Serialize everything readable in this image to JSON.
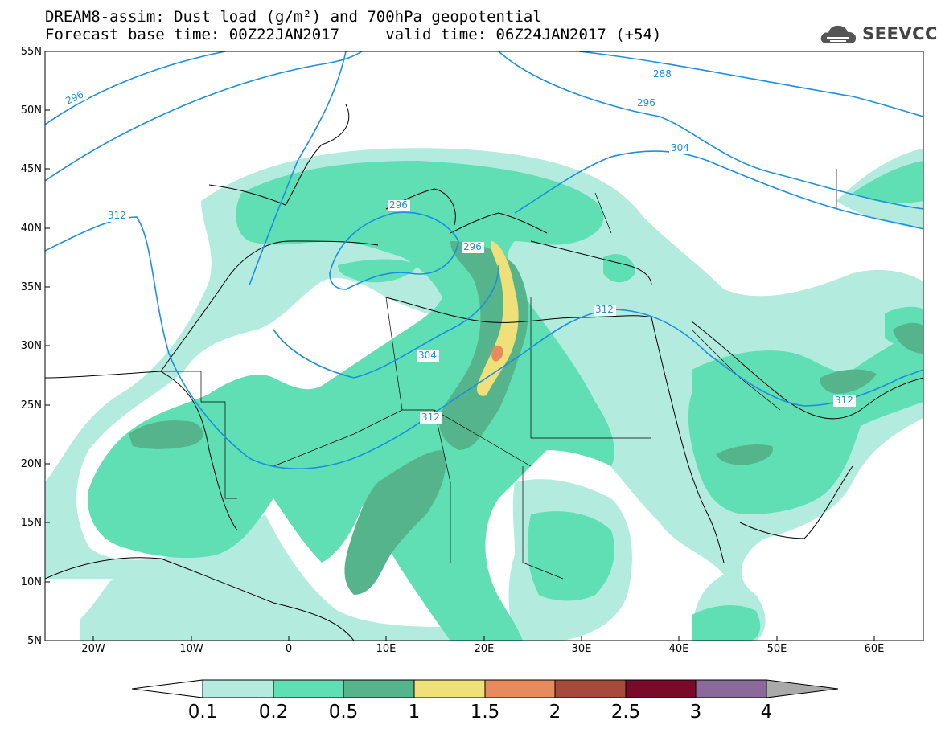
{
  "title": {
    "line1": "DREAM8-assim: Dust load (g/m²) and 700hPa geopotential",
    "line2": "Forecast base time: 00Z22JAN2017     valid time: 06Z24JAN2017 (+54)"
  },
  "logo": {
    "text": "SEEVCCC",
    "icon": "cloud-icon"
  },
  "map": {
    "lat_labels": [
      "55N",
      "50N",
      "45N",
      "40N",
      "35N",
      "30N",
      "25N",
      "20N",
      "15N",
      "10N",
      "5N"
    ],
    "lon_labels": [
      "20W",
      "10W",
      "0",
      "10E",
      "20E",
      "30E",
      "40E",
      "50E",
      "60E"
    ],
    "contour_labels": [
      "296",
      "288",
      "296",
      "304",
      "312",
      "296",
      "296",
      "304",
      "312",
      "312",
      "312"
    ]
  },
  "colorbar": {
    "labels": [
      "0.1",
      "0.2",
      "0.5",
      "1",
      "1.5",
      "2",
      "2.5",
      "3",
      "4"
    ],
    "colors": [
      "#ffffff",
      "#b3ecdf",
      "#5fdfb3",
      "#55b48b",
      "#f0e07a",
      "#e78a5e",
      "#a84a3a",
      "#7a0a2a",
      "#8a6a9a",
      "#aaaaaa"
    ]
  },
  "colors": {
    "dust_light": "#b3ecdf",
    "dust_medium": "#5fdfb3",
    "dust_dark": "#55b48b",
    "dust_yellow": "#f0e07a",
    "dust_orange": "#e78a5e",
    "contour_line": "#1c8fe0"
  }
}
